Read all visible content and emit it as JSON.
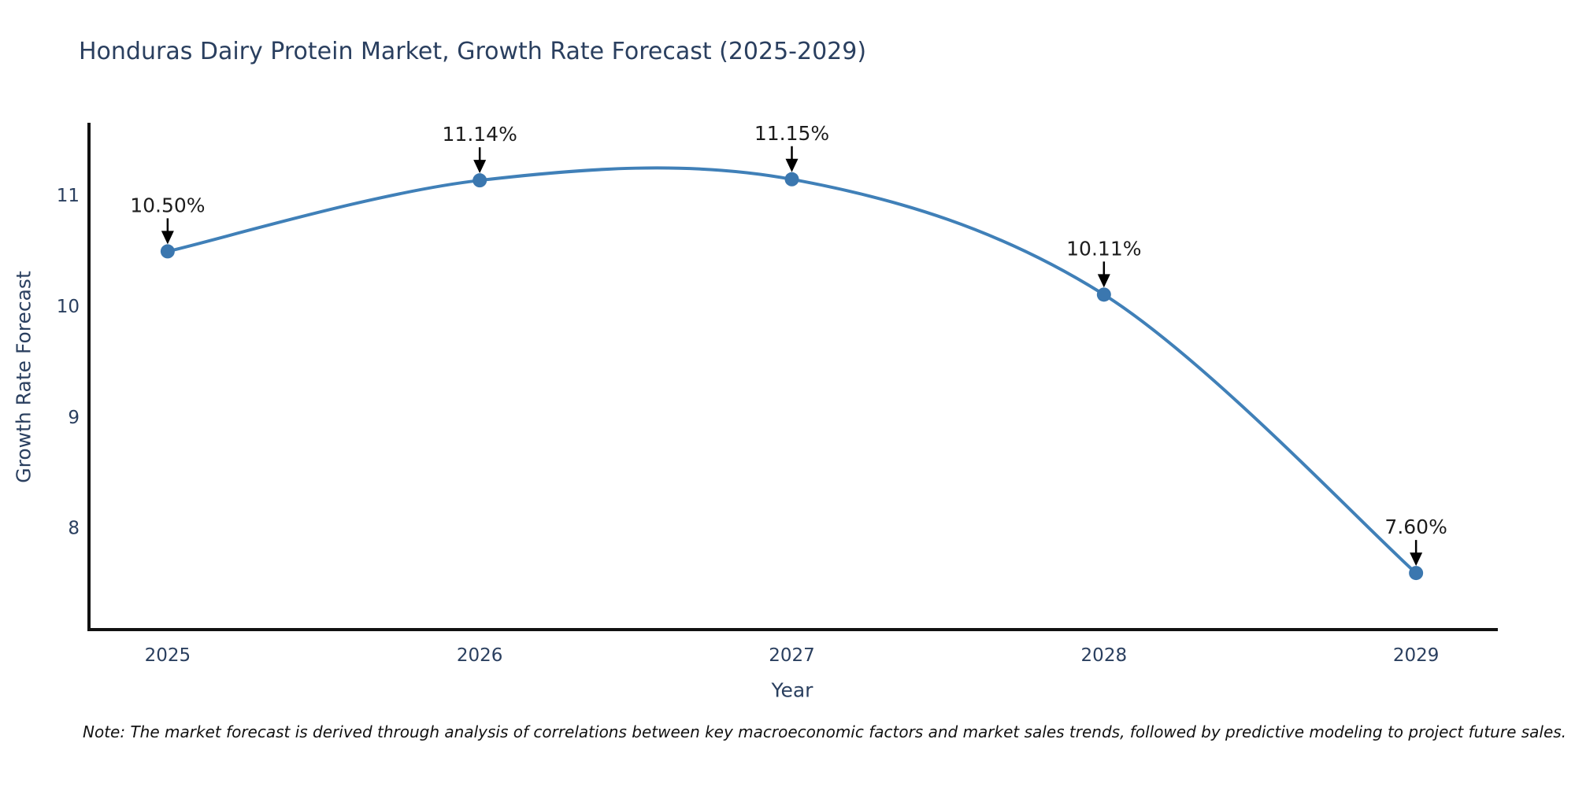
{
  "chart_data": {
    "type": "line",
    "title": "Honduras Dairy Protein Market, Growth Rate Forecast (2025-2029)",
    "xlabel": "Year",
    "ylabel": "Growth Rate Forecast",
    "x": [
      2025,
      2026,
      2027,
      2028,
      2029
    ],
    "values": [
      10.5,
      11.14,
      11.15,
      10.11,
      7.6
    ],
    "point_labels": [
      "10.50%",
      "11.14%",
      "11.15%",
      "10.11%",
      "7.60%"
    ],
    "x_tick_labels": [
      "2025",
      "2026",
      "2027",
      "2028",
      "2029"
    ],
    "x_tick_values": [
      2025,
      2026,
      2027,
      2028,
      2029
    ],
    "y_tick_labels": [
      "8",
      "9",
      "10",
      "11"
    ],
    "y_tick_values": [
      8,
      9,
      10,
      11
    ],
    "xlim": [
      2024.748,
      2029.257
    ],
    "ylim": [
      7.09,
      11.645
    ],
    "line_shape": "spline",
    "grid": false,
    "legend": "none",
    "colors": {
      "line": "#4080b8",
      "marker": "#3b77af",
      "annotation_text": "#1c1c1c",
      "arrow": "#000000",
      "axis_line": "#111111",
      "title_text": "#2a3f5f",
      "tick_text": "#2a3f5f"
    }
  },
  "note": "Note: The market forecast is derived through analysis of correlations between key macroeconomic factors and market sales trends, followed by predictive modeling to project future sales."
}
